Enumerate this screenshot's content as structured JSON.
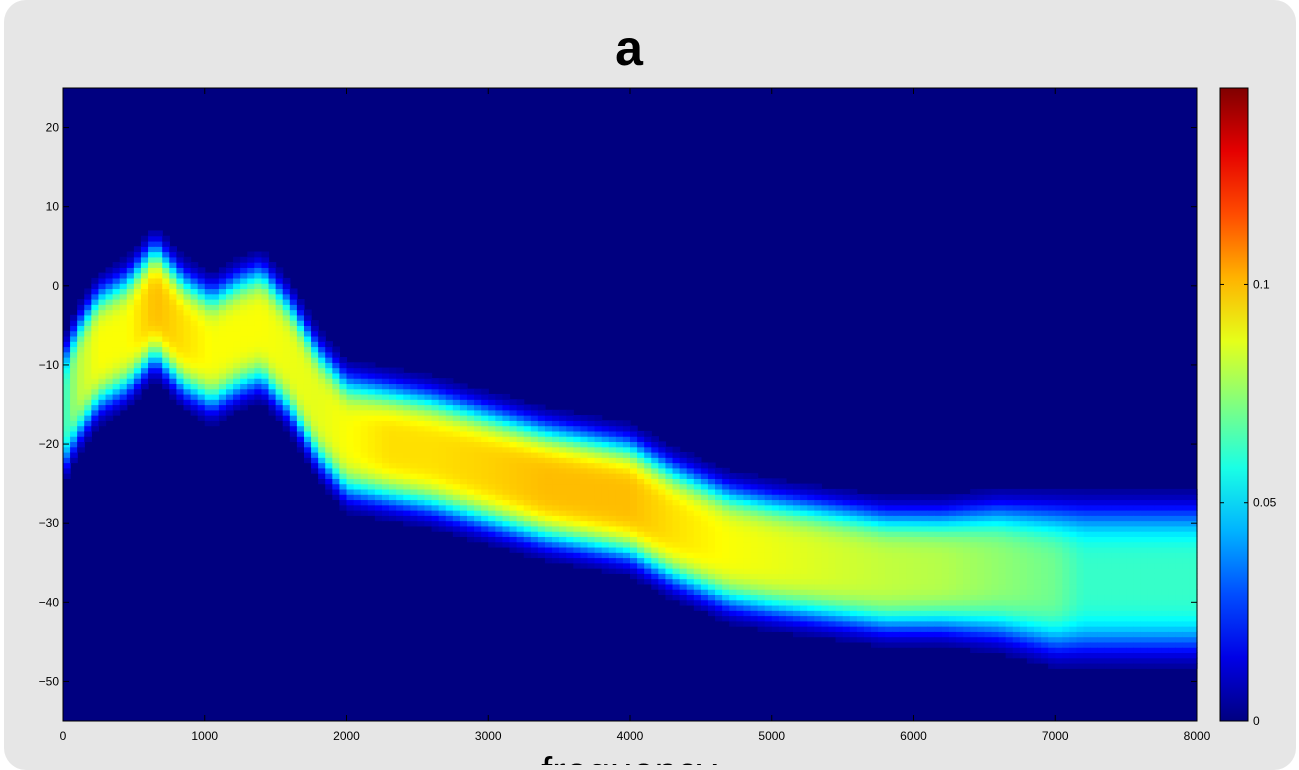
{
  "chart_data": {
    "type": "heatmap",
    "title": "a",
    "xlabel": "frequency",
    "ylabel": "",
    "xlim": [
      0,
      8000
    ],
    "ylim": [
      -55,
      25
    ],
    "xticks": [
      0,
      1000,
      2000,
      3000,
      4000,
      5000,
      6000,
      7000,
      8000
    ],
    "yticks": [
      20,
      10,
      0,
      -10,
      -20,
      -30,
      -40,
      -50
    ],
    "colorbar": {
      "clim": [
        0,
        0.145
      ],
      "ticks": [
        0,
        0.05,
        0.1
      ],
      "colormap": "jet"
    },
    "ridge": {
      "x": [
        0,
        100,
        250,
        450,
        650,
        850,
        1050,
        1250,
        1400,
        1600,
        1800,
        2000,
        2300,
        2600,
        3000,
        3400,
        3700,
        4000,
        4300,
        4700,
        5000,
        5400,
        5800,
        6200,
        6600,
        7000,
        7200,
        8000
      ],
      "center": [
        -16,
        -12,
        -8,
        -6,
        -2,
        -6,
        -8,
        -6,
        -5,
        -9,
        -15,
        -19,
        -20,
        -21,
        -23,
        -25,
        -26,
        -27,
        -30,
        -33,
        -34,
        -35,
        -36,
        -36,
        -36,
        -37,
        -37,
        -37
      ],
      "width": [
        5,
        5,
        5,
        5,
        5,
        5,
        5,
        5,
        5,
        5,
        5,
        5,
        5,
        5,
        5,
        5,
        5,
        5,
        5,
        5,
        5,
        5,
        5,
        5,
        5.5,
        6,
        6,
        6
      ],
      "peak": [
        0.06,
        0.08,
        0.09,
        0.09,
        0.1,
        0.095,
        0.09,
        0.09,
        0.09,
        0.088,
        0.087,
        0.09,
        0.095,
        0.095,
        0.097,
        0.1,
        0.1,
        0.1,
        0.095,
        0.09,
        0.088,
        0.085,
        0.082,
        0.08,
        0.075,
        0.07,
        0.062,
        0.062
      ]
    }
  }
}
